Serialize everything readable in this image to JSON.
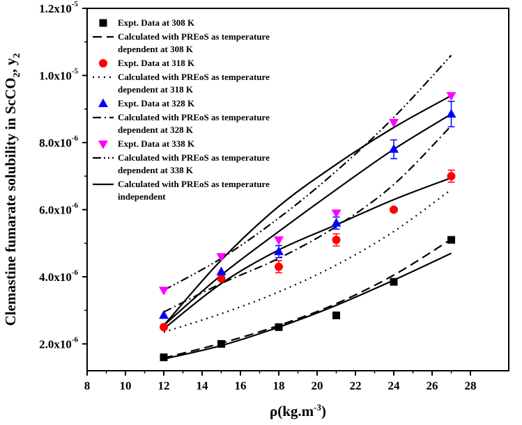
{
  "chart_data": {
    "type": "scatter",
    "xlabel": "ρ(kg.m",
    "xlabel_sup": "-3",
    "xlabel_end": ")",
    "ylabel_parts": [
      "Clemastine fumarate solubility in ScCO",
      "2",
      ", y",
      "2"
    ],
    "xlim": [
      8,
      30
    ],
    "ylim": [
      1.2e-06,
      1.2e-05
    ],
    "x_ticks": [
      8,
      10,
      12,
      14,
      16,
      18,
      20,
      22,
      24,
      26,
      28
    ],
    "x_tick_labels": [
      "8",
      "10",
      "12",
      "14",
      "16",
      "18",
      "20",
      "22",
      "24",
      "26",
      "28"
    ],
    "y_ticks": [
      2e-06,
      4e-06,
      6e-06,
      8e-06,
      1e-05,
      1.2e-05
    ],
    "y_tick_mantissas": [
      "2.0x10",
      "4.0x10",
      "6.0x10",
      "8.0x10",
      "1.0x10",
      "1.2x10"
    ],
    "y_tick_exponents": [
      "-6",
      "-6",
      "-6",
      "-6",
      "-5",
      "-5"
    ],
    "x": [
      12,
      15,
      18,
      21,
      24,
      27
    ],
    "experimental": [
      {
        "name": "Expt. Data at 308 K",
        "marker": "square",
        "color": "#000000",
        "values": [
          1.6e-06,
          2e-06,
          2.5e-06,
          2.85e-06,
          3.85e-06,
          5.1e-06
        ],
        "errors": [
          0,
          0,
          0,
          0,
          0,
          0
        ]
      },
      {
        "name": "Expt. Data at 318 K",
        "marker": "circle",
        "color": "#ff0000",
        "values": [
          2.5e-06,
          3.95e-06,
          4.3e-06,
          5.1e-06,
          6e-06,
          7e-06
        ],
        "errors": [
          0,
          0,
          1.8e-07,
          1.8e-07,
          0,
          1.8e-07
        ]
      },
      {
        "name": "Expt. Data at 328 K",
        "marker": "triangle-up",
        "color": "#0000ff",
        "values": [
          2.85e-06,
          4.15e-06,
          4.75e-06,
          5.6e-06,
          7.8e-06,
          8.85e-06
        ],
        "errors": [
          0,
          0,
          1.8e-07,
          1.8e-07,
          2.8e-07,
          3.8e-07
        ]
      },
      {
        "name": "Expt. Data at 338 K",
        "marker": "triangle-down",
        "color": "#ff00ff",
        "values": [
          3.6e-06,
          4.6e-06,
          5.1e-06,
          5.9e-06,
          8.6e-06,
          9.4e-06
        ],
        "errors": [
          0,
          0,
          0,
          0,
          0,
          0
        ]
      }
    ],
    "calculated": [
      {
        "name": "Calculated with PREoS as temperature dependent at 308 K",
        "dash": "dash",
        "x": [
          12,
          15,
          18,
          21,
          24,
          27
        ],
        "values": [
          1.58e-06,
          2.02e-06,
          2.55e-06,
          3.2e-06,
          4.05e-06,
          5.12e-06
        ]
      },
      {
        "name": "Calculated with PREoS as temperature dependent at 318 K",
        "dash": "dot",
        "x": [
          12,
          15,
          18,
          21,
          24,
          27
        ],
        "values": [
          2.35e-06,
          2.9e-06,
          3.55e-06,
          4.35e-06,
          5.35e-06,
          6.6e-06
        ]
      },
      {
        "name": "Calculated with PREoS as temperature dependent at 328 K",
        "dash": "dashdot",
        "x": [
          12,
          15,
          18,
          21,
          24,
          27
        ],
        "values": [
          2.95e-06,
          3.8e-06,
          4.55e-06,
          5.5e-06,
          6.75e-06,
          8.5e-06
        ]
      },
      {
        "name": "Calculated with PREoS as temperature dependent at 338 K",
        "dash": "dashdotdot",
        "x": [
          12,
          15,
          18,
          21,
          24,
          27
        ],
        "values": [
          3.6e-06,
          4.55e-06,
          5.75e-06,
          7.15e-06,
          8.75e-06,
          1.06e-05
        ]
      },
      {
        "name": "Calculated with PREoS as temperature independent (308 K)",
        "dash": "solid",
        "x": [
          12,
          15,
          18,
          21,
          24,
          27
        ],
        "values": [
          1.55e-06,
          1.95e-06,
          2.5e-06,
          3.15e-06,
          3.9e-06,
          4.7e-06
        ]
      },
      {
        "name": "Calculated with PREoS as temperature independent (318 K)",
        "dash": "solid",
        "x": [
          12,
          15,
          18,
          21,
          24,
          27
        ],
        "values": [
          2.45e-06,
          3.8e-06,
          4.8e-06,
          5.55e-06,
          6.3e-06,
          6.95e-06
        ]
      },
      {
        "name": "Calculated with PREoS as temperature independent (328 K)",
        "dash": "solid",
        "x": [
          12,
          15,
          18,
          21,
          24,
          27
        ],
        "values": [
          2.55e-06,
          4.05e-06,
          5.35e-06,
          6.6e-06,
          7.8e-06,
          8.85e-06
        ]
      },
      {
        "name": "Calculated with PREoS as temperature independent (338 K)",
        "dash": "solid",
        "x": [
          12,
          15,
          18,
          21,
          24,
          27
        ],
        "values": [
          2.55e-06,
          4.5e-06,
          6.1e-06,
          7.35e-06,
          8.45e-06,
          9.4e-06
        ]
      }
    ],
    "legend_position": "top-left",
    "legend": [
      {
        "kind": "marker",
        "marker": "square",
        "color": "#000000",
        "lines": [
          "Expt. Data at 308 K"
        ]
      },
      {
        "kind": "line",
        "dash": "dash",
        "lines": [
          "Calculated with PREoS as temperature",
          "dependent at 308 K"
        ]
      },
      {
        "kind": "marker",
        "marker": "circle",
        "color": "#ff0000",
        "lines": [
          "Expt. Data at 318 K"
        ]
      },
      {
        "kind": "line",
        "dash": "dot",
        "lines": [
          "Calculated with PREoS as temperature",
          "dependent at 318 K"
        ]
      },
      {
        "kind": "marker",
        "marker": "triangle-up",
        "color": "#0000ff",
        "lines": [
          "Expt. Data at 328 K"
        ]
      },
      {
        "kind": "line",
        "dash": "dashdot",
        "lines": [
          "Calculated with PREoS as temperature",
          "dependent at 328 K"
        ]
      },
      {
        "kind": "marker",
        "marker": "triangle-down",
        "color": "#ff00ff",
        "lines": [
          "Expt. Data at 338 K"
        ]
      },
      {
        "kind": "line",
        "dash": "dashdotdot",
        "lines": [
          "Calculated with PREoS as temperature",
          "dependent at 338 K"
        ]
      },
      {
        "kind": "line",
        "dash": "solid",
        "lines": [
          "Calculated with PREoS as temperature",
          "independent"
        ]
      }
    ]
  }
}
